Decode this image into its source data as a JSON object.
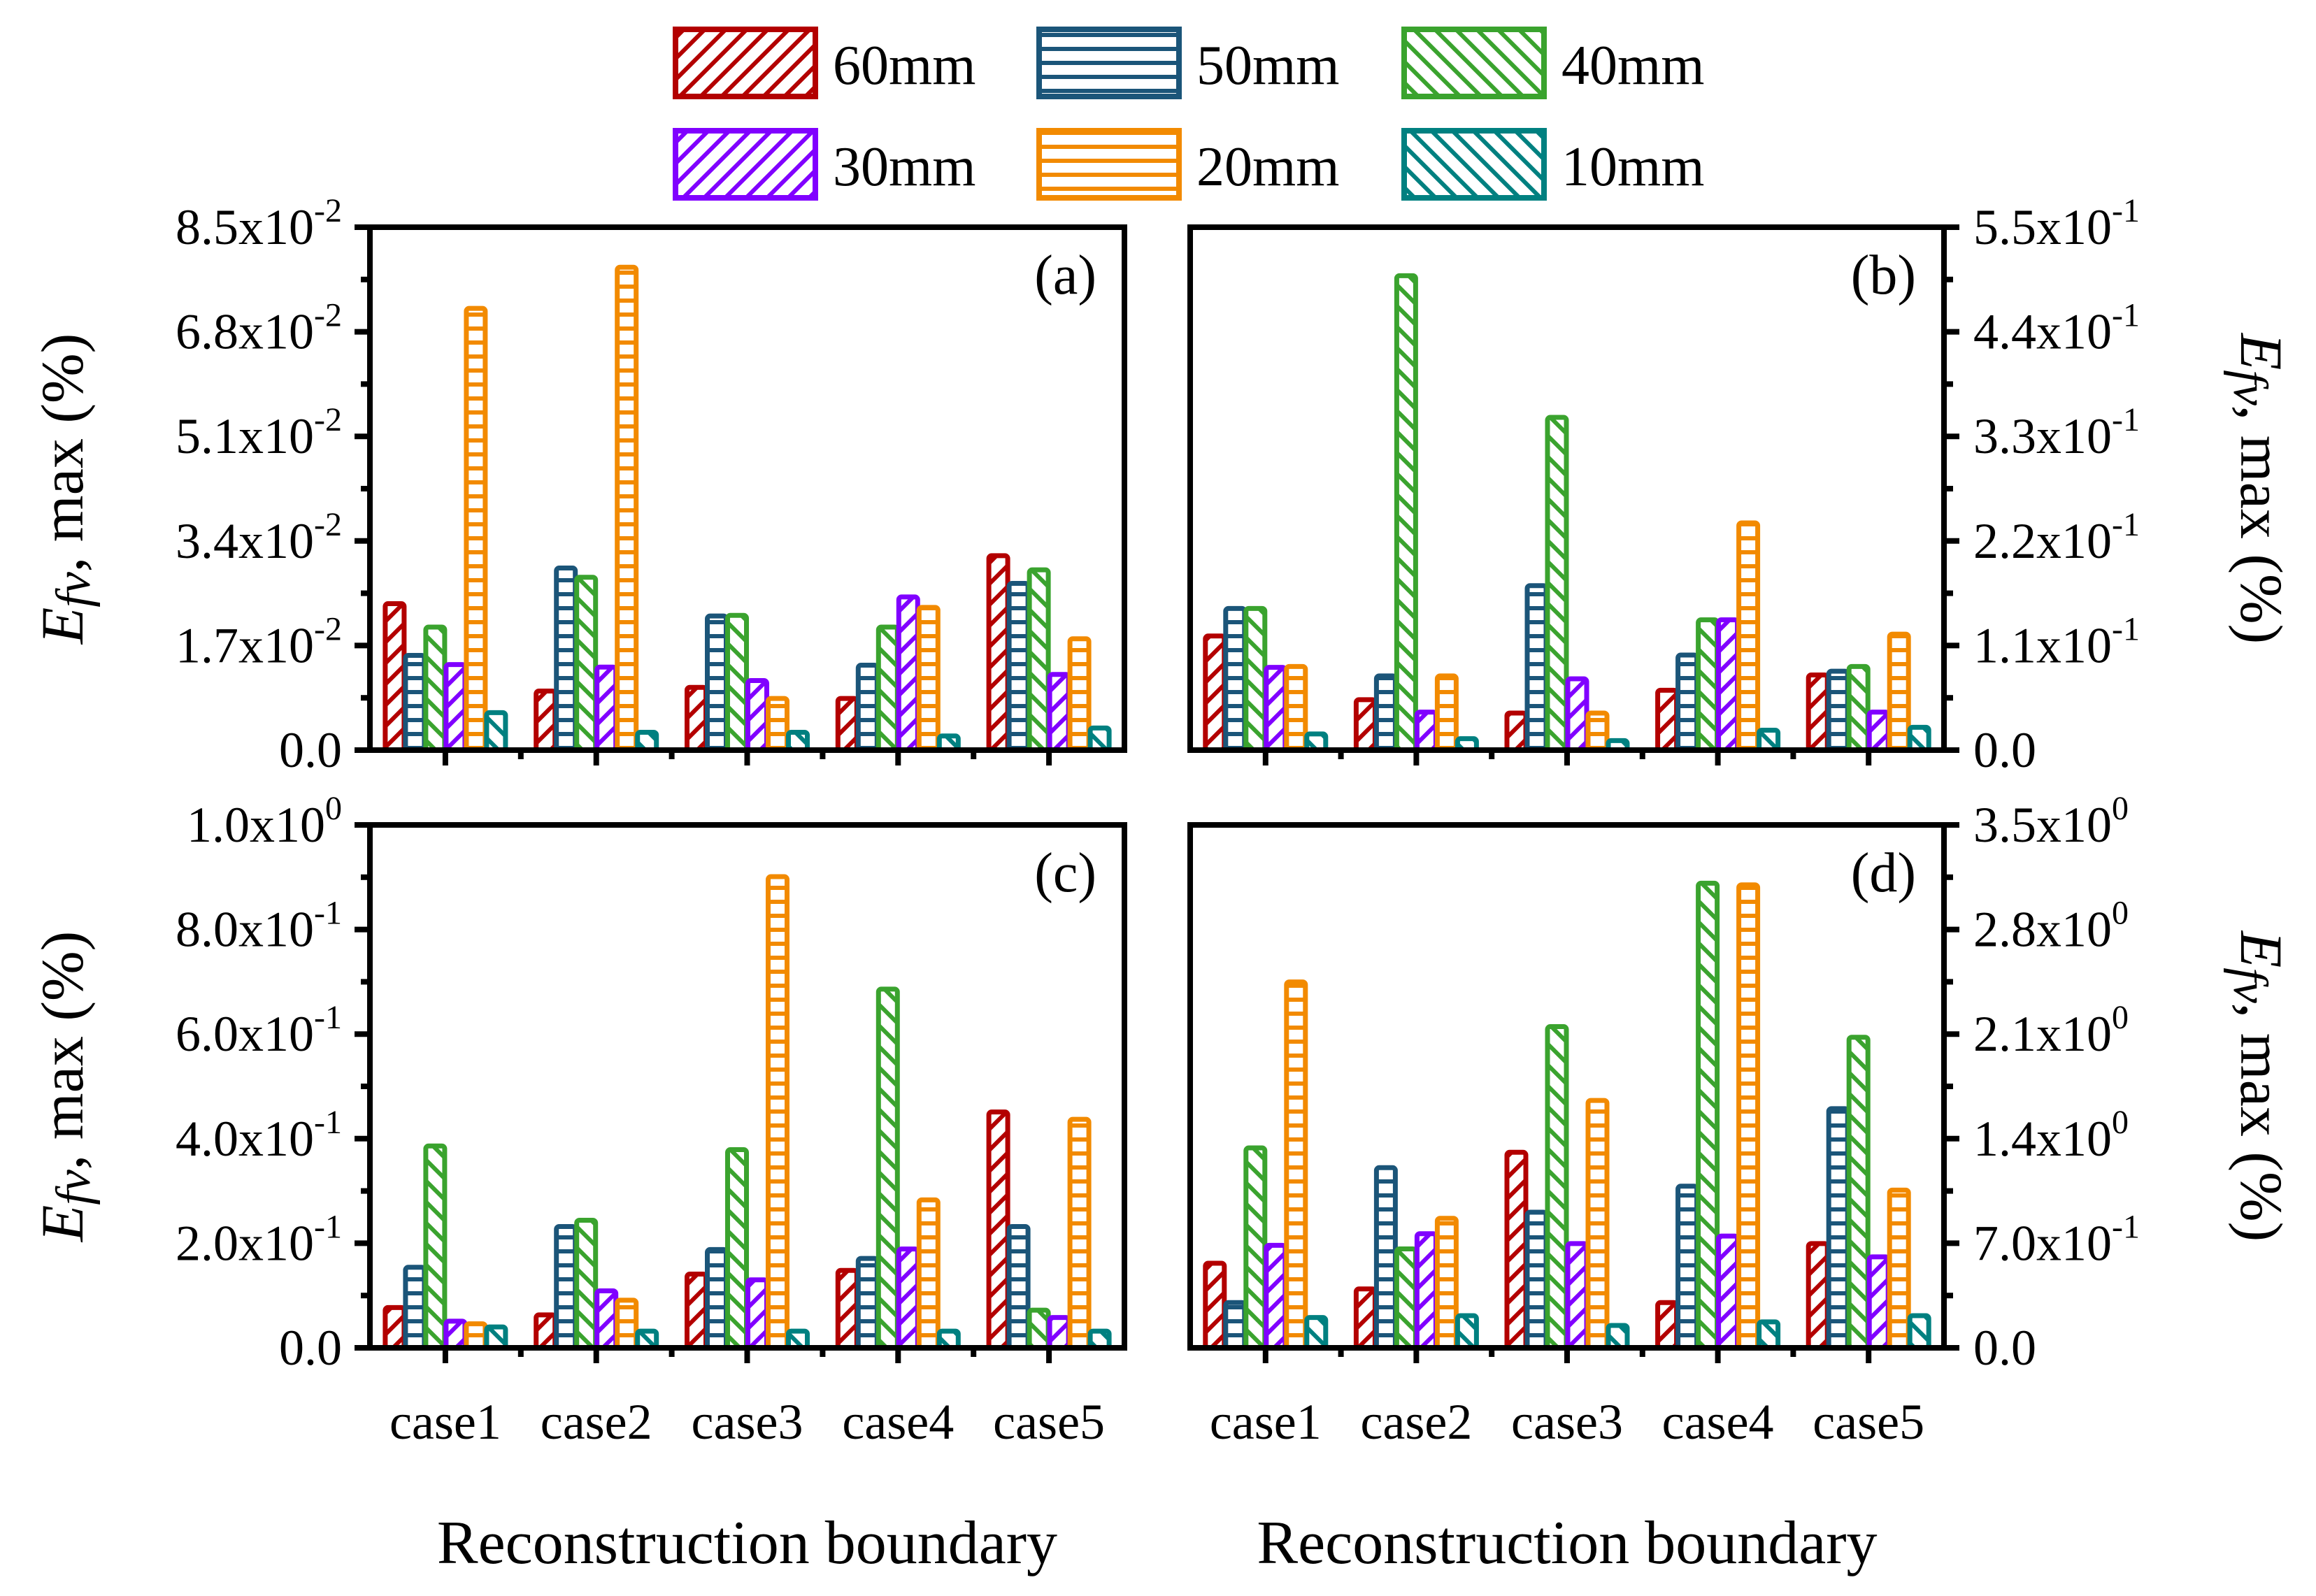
{
  "legend": [
    {
      "name": "60mm",
      "color": "#b30000",
      "pattern": "diag-right"
    },
    {
      "name": "50mm",
      "color": "#1b5579",
      "pattern": "horizontal"
    },
    {
      "name": "40mm",
      "color": "#3aa32e",
      "pattern": "diag-left"
    },
    {
      "name": "30mm",
      "color": "#8000ff",
      "pattern": "diag-right"
    },
    {
      "name": "20mm",
      "color": "#f28a00",
      "pattern": "horizontal"
    },
    {
      "name": "10mm",
      "color": "#008080",
      "pattern": "diag-left"
    }
  ],
  "chart_data": [
    {
      "type": "bar",
      "panel": "(a)",
      "yaxis_side": "left",
      "categories": [
        "case1",
        "case2",
        "case3",
        "case4",
        "case5"
      ],
      "ylim": [
        0,
        0.085
      ],
      "ytick_values": [
        0,
        0.017,
        0.034,
        0.051,
        0.068,
        0.085
      ],
      "yticks": [
        {
          "m": "0.0",
          "e": ""
        },
        {
          "m": "1.7x10",
          "e": "-2"
        },
        {
          "m": "3.4x10",
          "e": "-2"
        },
        {
          "m": "5.1x10",
          "e": "-2"
        },
        {
          "m": "6.8x10",
          "e": "-2"
        },
        {
          "m": "8.5x10",
          "e": "-2"
        }
      ],
      "ylabel": {
        "symbol": "E",
        "sub": "fv",
        "rest": ", max (%)"
      },
      "xlabel": "",
      "series": [
        {
          "name": "60mm",
          "values": [
            0.0238,
            0.0096,
            0.0102,
            0.0084,
            0.0316
          ]
        },
        {
          "name": "50mm",
          "values": [
            0.0154,
            0.0296,
            0.0218,
            0.0138,
            0.0271
          ]
        },
        {
          "name": "40mm",
          "values": [
            0.02,
            0.0281,
            0.0219,
            0.02,
            0.0293
          ]
        },
        {
          "name": "30mm",
          "values": [
            0.0139,
            0.0135,
            0.0113,
            0.0249,
            0.0123
          ]
        },
        {
          "name": "20mm",
          "values": [
            0.0718,
            0.0785,
            0.0084,
            0.0232,
            0.0181
          ]
        },
        {
          "name": "10mm",
          "values": [
            0.0061,
            0.0029,
            0.0029,
            0.0023,
            0.0036
          ]
        }
      ]
    },
    {
      "type": "bar",
      "panel": "(b)",
      "yaxis_side": "right",
      "categories": [
        "case1",
        "case2",
        "case3",
        "case4",
        "case5"
      ],
      "ylim": [
        0,
        0.55
      ],
      "ytick_values": [
        0,
        0.11,
        0.22,
        0.33,
        0.44,
        0.55
      ],
      "yticks": [
        {
          "m": "0.0",
          "e": ""
        },
        {
          "m": "1.1x10",
          "e": "-1"
        },
        {
          "m": "2.2x10",
          "e": "-1"
        },
        {
          "m": "3.3x10",
          "e": "-1"
        },
        {
          "m": "4.4x10",
          "e": "-1"
        },
        {
          "m": "5.5x10",
          "e": "-1"
        }
      ],
      "ylabel": {
        "symbol": "E",
        "sub": "fv",
        "rest": ", max (%)"
      },
      "xlabel": "",
      "series": [
        {
          "name": "60mm",
          "values": [
            0.12,
            0.053,
            0.039,
            0.063,
            0.079
          ]
        },
        {
          "name": "50mm",
          "values": [
            0.149,
            0.078,
            0.173,
            0.1,
            0.083
          ]
        },
        {
          "name": "40mm",
          "values": [
            0.149,
            0.499,
            0.35,
            0.137,
            0.088
          ]
        },
        {
          "name": "30mm",
          "values": [
            0.087,
            0.04,
            0.075,
            0.137,
            0.04
          ]
        },
        {
          "name": "20mm",
          "values": [
            0.088,
            0.078,
            0.039,
            0.239,
            0.122
          ]
        },
        {
          "name": "10mm",
          "values": [
            0.017,
            0.012,
            0.01,
            0.021,
            0.024
          ]
        }
      ]
    },
    {
      "type": "bar",
      "panel": "(c)",
      "yaxis_side": "left",
      "categories": [
        "case1",
        "case2",
        "case3",
        "case4",
        "case5"
      ],
      "ylim": [
        0,
        1.0
      ],
      "ytick_values": [
        0,
        0.2,
        0.4,
        0.6,
        0.8,
        1.0
      ],
      "yticks": [
        {
          "m": "0.0",
          "e": ""
        },
        {
          "m": "2.0x10",
          "e": "-1"
        },
        {
          "m": "4.0x10",
          "e": "-1"
        },
        {
          "m": "6.0x10",
          "e": "-1"
        },
        {
          "m": "8.0x10",
          "e": "-1"
        },
        {
          "m": "1.0x10",
          "e": "0"
        }
      ],
      "ylabel": {
        "symbol": "E",
        "sub": "fv",
        "rest": ", max (%)"
      },
      "xlabel": "Reconstruction boundary",
      "series": [
        {
          "name": "60mm",
          "values": [
            0.077,
            0.063,
            0.141,
            0.148,
            0.451
          ]
        },
        {
          "name": "50mm",
          "values": [
            0.154,
            0.232,
            0.188,
            0.171,
            0.232
          ]
        },
        {
          "name": "40mm",
          "values": [
            0.386,
            0.244,
            0.379,
            0.686,
            0.072
          ]
        },
        {
          "name": "30mm",
          "values": [
            0.051,
            0.109,
            0.13,
            0.189,
            0.058
          ]
        },
        {
          "name": "20mm",
          "values": [
            0.046,
            0.091,
            0.901,
            0.283,
            0.437
          ]
        },
        {
          "name": "10mm",
          "values": [
            0.04,
            0.032,
            0.032,
            0.032,
            0.032
          ]
        }
      ]
    },
    {
      "type": "bar",
      "panel": "(d)",
      "yaxis_side": "right",
      "categories": [
        "case1",
        "case2",
        "case3",
        "case4",
        "case5"
      ],
      "ylim": [
        0,
        3.5
      ],
      "ytick_values": [
        0,
        0.7,
        1.4,
        2.1,
        2.8,
        3.5
      ],
      "yticks": [
        {
          "m": "0.0",
          "e": ""
        },
        {
          "m": "7.0x10",
          "e": "-1"
        },
        {
          "m": "1.4x10",
          "e": "0"
        },
        {
          "m": "2.1x10",
          "e": "0"
        },
        {
          "m": "2.8x10",
          "e": "0"
        },
        {
          "m": "3.5x10",
          "e": "0"
        }
      ],
      "ylabel": {
        "symbol": "E",
        "sub": "fv",
        "rest": ", max (%)"
      },
      "xlabel": "Reconstruction boundary",
      "series": [
        {
          "name": "60mm",
          "values": [
            0.566,
            0.394,
            1.309,
            0.303,
            0.698
          ]
        },
        {
          "name": "50mm",
          "values": [
            0.303,
            1.206,
            0.908,
            1.082,
            1.601
          ]
        },
        {
          "name": "40mm",
          "values": [
            1.338,
            0.662,
            2.15,
            3.11,
            2.079
          ]
        },
        {
          "name": "30mm",
          "values": [
            0.686,
            0.764,
            0.698,
            0.748,
            0.609
          ]
        },
        {
          "name": "20mm",
          "values": [
            2.449,
            0.867,
            1.656,
            3.099,
            1.056
          ]
        },
        {
          "name": "10mm",
          "values": [
            0.203,
            0.215,
            0.15,
            0.174,
            0.215
          ]
        }
      ]
    }
  ]
}
